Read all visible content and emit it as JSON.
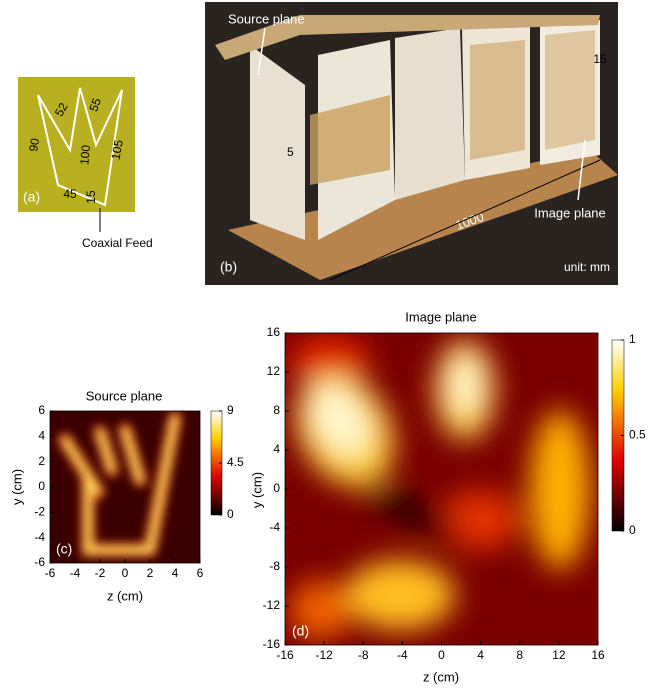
{
  "panel_a": {
    "tag": "(a)",
    "dims": [
      "90",
      "52",
      "55",
      "100",
      "105",
      "45",
      "15"
    ],
    "feed_label": "Coaxial Feed"
  },
  "panel_b": {
    "tag": "(b)",
    "source_label": "Source plane",
    "image_label": "Image plane",
    "dim_top": "15",
    "dim_left": "5",
    "dim_length": "1000",
    "unit": "unit: mm"
  },
  "panel_c": {
    "title": "Source plane",
    "tag": "(c)",
    "xlabel": "z (cm)",
    "ylabel": "y (cm)",
    "xlim": [
      -6,
      6
    ],
    "ylim": [
      -6,
      6
    ],
    "xticks": [
      -6,
      -4,
      -2,
      0,
      2,
      4,
      6
    ],
    "yticks": [
      -6,
      -4,
      -2,
      0,
      2,
      4,
      6
    ],
    "clim": [
      0,
      9
    ],
    "cticks": [
      0,
      4.5,
      9
    ]
  },
  "panel_d": {
    "title": "Image plane",
    "tag": "(d)",
    "xlabel": "z (cm)",
    "ylabel": "y (cm)",
    "xlim": [
      -16,
      16
    ],
    "ylim": [
      -16,
      16
    ],
    "xticks": [
      -16,
      -12,
      -8,
      -4,
      0,
      4,
      8,
      12,
      16
    ],
    "yticks": [
      -16,
      -12,
      -8,
      -4,
      0,
      4,
      8,
      12,
      16
    ],
    "clim": [
      0,
      1
    ],
    "cticks": [
      0,
      0.5,
      1
    ]
  }
}
